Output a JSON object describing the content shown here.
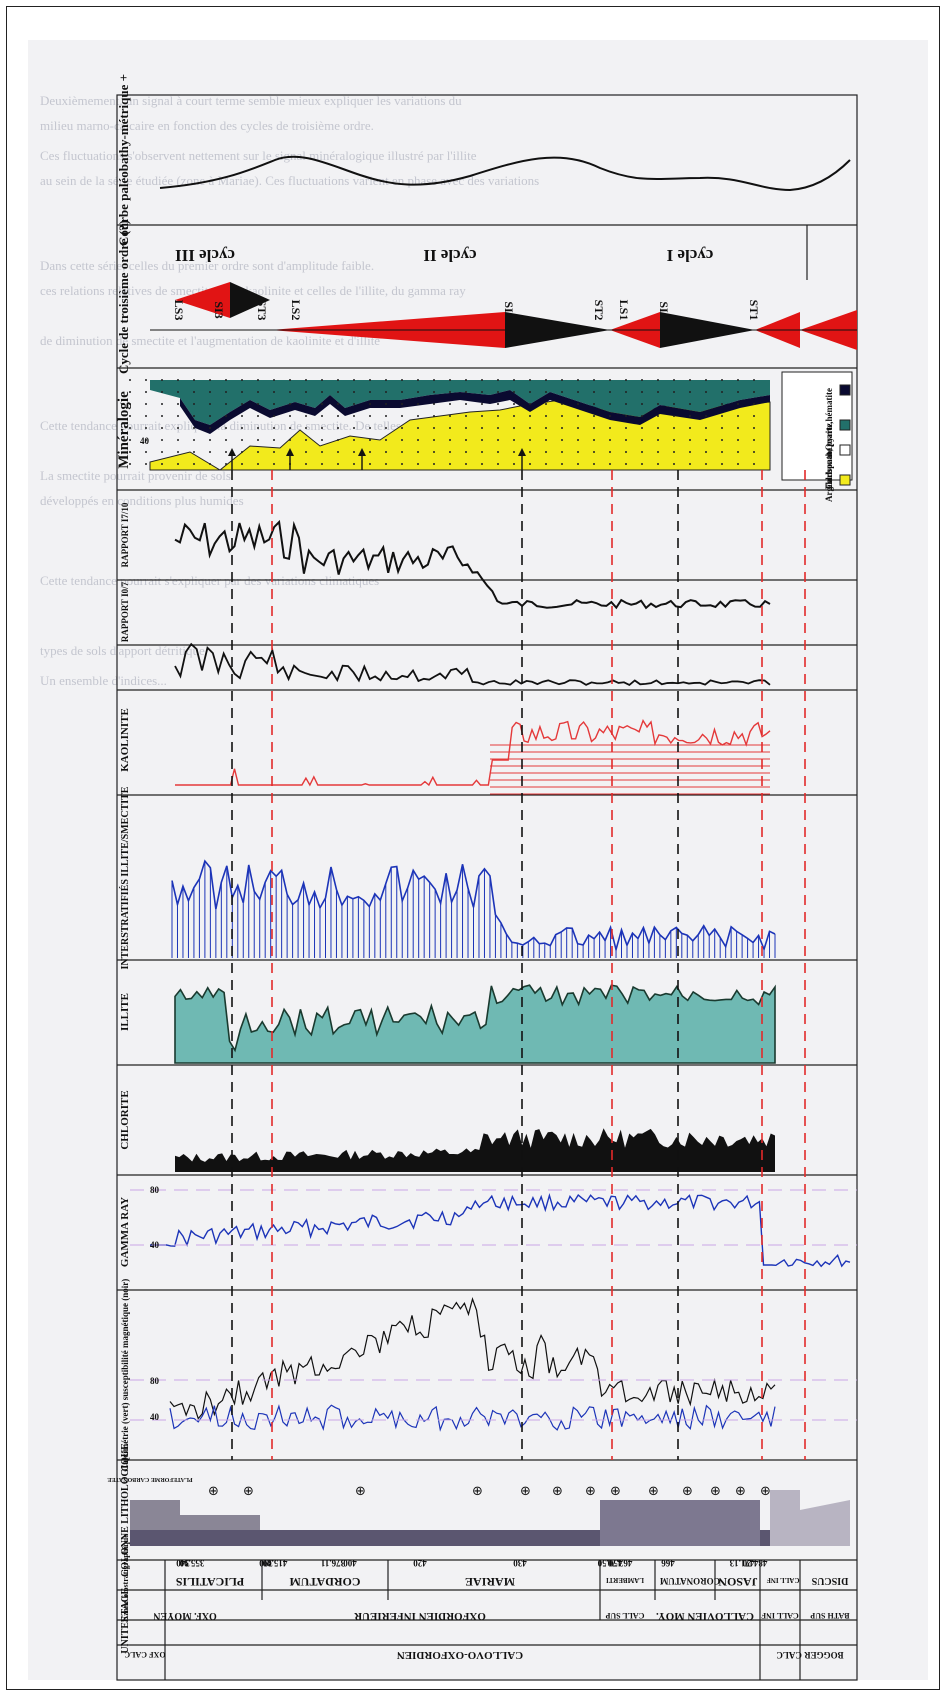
{
  "background_text": [
    "Deuxièmement, un signal à court terme semble mieux expliquer les variations du",
    "milieu marno-calcaire en fonction des cycles de troisième ordre.",
    "Ces fluctuations s'observent nettement sur le signal minéralogique illustré par l'illite",
    "au sein de la série étudiée (zone à Mariae). Ces fluctuations varient en phase avec des variations",
    "Dans cette série, celles du premier ordre sont d'amplitude faible.",
    "ces relations relatives de smectite et de kaolinite et celles de l'illite, du gamma ray",
    "de diminution de smectite et l'augmentation de kaolinite et d'illite",
    "Cette tendance pourrait expliquer la diminution de smectite. De telles associations",
    "La smectite pourrait provenir de sols",
    "développés en conditions plus humides",
    "Cette tendance pourrait s'expliquer par des variations climatiques",
    "types de sols d'apport détritique",
    "Un ensemble d'indices..."
  ],
  "rows": {
    "bathy": "Courbe paléobathy-métrique +",
    "cycle": "Cycle de troisième ordre (?)",
    "mineral": "Minéralogie",
    "i17": "RAPPORT I7/10",
    "i107": "RAPPORT I0/7",
    "kaol": "KAOLINITE",
    "inter": "INTERSTRATIFIÉS ILLITE/SMECTITE",
    "illite": "ILLITE",
    "chlorite": "CHLORITE",
    "gamma": "GAMMA RAY",
    "calci": "Calcimétrie (vert) susceptibilité magnétique (noir)",
    "colonne": "COLONNE LITHOLOGIQUE",
    "zone": "zone biostratigraphique",
    "etage": "ETAGE",
    "unites": "UNITES"
  },
  "mineral_legend": {
    "a": "Argile",
    "c": "Carbonate",
    "q": "Quartz",
    "f": "Feldspath, pyrite,hématite"
  },
  "mineral_colors": {
    "argile": "#f2ea1c",
    "carbonate": "#ffffff",
    "quartz": "#22706a",
    "feldspath": "#0a0a30"
  },
  "cycles": [
    "cycle III",
    "cycle II",
    "cycle I"
  ],
  "sequences": [
    "LS3",
    "SI3",
    "ST3",
    "LS2",
    "SI2",
    "ST2",
    "LS1",
    "SI1",
    "ST1"
  ],
  "gamma_ticks": [
    "80",
    "40"
  ],
  "calci_ticks": [
    "40",
    "80"
  ],
  "tick_small": "40",
  "units": [
    "CALLOVO-OXFORDIEN",
    "BOGGER CALC",
    "OXF CALC"
  ],
  "etages": [
    "OXF. MOYEN",
    "OXFORDIEN INFERIEUR",
    "CALL SUP",
    "CALLOVIEN MOY.",
    "CALL INF",
    "BATH SUP"
  ],
  "zones": [
    "PLICATILIS",
    "CORDATUM",
    "MARIAE",
    "LAMBERTI",
    "CORONATUM",
    "JASON",
    "CALL INF",
    "DISCUS"
  ],
  "depths": [
    "340",
    "355.90",
    "390",
    "415.00",
    "376.11",
    "400",
    "420",
    "430",
    "450.50",
    "463.70",
    "466",
    "471.13",
    "484.20"
  ],
  "colonne_note": "PLATEFORME CARBONATEE",
  "colors": {
    "red_triangle": "#e11414",
    "dashed_red": "#e22a2a",
    "dashed_black": "#111111",
    "blue_curve": "#1c34b8",
    "illite_fill": "#6fb9b3",
    "kaolin": "#e4393a"
  }
}
